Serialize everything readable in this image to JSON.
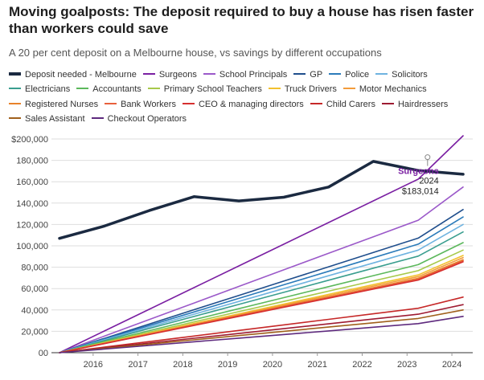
{
  "chart_data": {
    "type": "line",
    "title": "Moving goalposts: The deposit required to buy a house has risen faster than workers could save",
    "subtitle": "A 20 per cent deposit on a Melbourne house, vs savings by different occupations",
    "x_ticks": [
      "2016",
      "2017",
      "2018",
      "2019",
      "2020",
      "2021",
      "2022",
      "2023",
      "2024"
    ],
    "x": [
      2015.5,
      2016.5,
      2017.5,
      2018.5,
      2019.5,
      2020.5,
      2021.5,
      2022.5,
      2023.5,
      2024.5
    ],
    "ylim": [
      0,
      200000
    ],
    "y_ticks": [
      0,
      20000,
      40000,
      60000,
      80000,
      100000,
      120000,
      140000,
      160000,
      180000,
      200000
    ],
    "y_tick_labels": [
      "00",
      "20,000",
      "40,000",
      "60,000",
      "80,000",
      "100,000",
      "120,000",
      "140,000",
      "160,000",
      "180,000",
      "$200,000"
    ],
    "grid": true,
    "legend_position": "top",
    "series": [
      {
        "name": "Deposit needed - Melbourne",
        "color": "#1b2a41",
        "width": 3.5,
        "values": [
          107000,
          118500,
          133000,
          146000,
          142000,
          145500,
          155000,
          179000,
          170500,
          167000
        ]
      },
      {
        "name": "Surgeons",
        "color": "#7a1fa2",
        "width": 1.6,
        "values": [
          0,
          20300,
          40600,
          60900,
          81200,
          101500,
          121800,
          142100,
          162400,
          203000
        ]
      },
      {
        "name": "School Principals",
        "color": "#9b59c9",
        "width": 1.6,
        "values": [
          0,
          15500,
          31000,
          46500,
          62000,
          77500,
          93000,
          108500,
          124000,
          155000
        ]
      },
      {
        "name": "GP",
        "color": "#1f4e8c",
        "width": 1.6,
        "values": [
          0,
          13400,
          26800,
          40200,
          53600,
          67000,
          80400,
          93800,
          107200,
          134000
        ]
      },
      {
        "name": "Police",
        "color": "#2b7bba",
        "width": 1.6,
        "values": [
          0,
          12700,
          25400,
          38100,
          50800,
          63500,
          76200,
          88900,
          101600,
          127000
        ]
      },
      {
        "name": "Solicitors",
        "color": "#6fb3e0",
        "width": 1.6,
        "values": [
          0,
          12000,
          24000,
          36000,
          48000,
          60000,
          72000,
          84000,
          96000,
          120000
        ]
      },
      {
        "name": "Electricians",
        "color": "#3a9e8f",
        "width": 1.6,
        "values": [
          0,
          11300,
          22600,
          33900,
          45200,
          56500,
          67800,
          79100,
          90400,
          113000
        ]
      },
      {
        "name": "Accountants",
        "color": "#5cb85c",
        "width": 1.6,
        "values": [
          0,
          10300,
          20600,
          30900,
          41200,
          51500,
          61800,
          72100,
          82400,
          103000
        ]
      },
      {
        "name": "Primary School Teachers",
        "color": "#a7c94a",
        "width": 1.6,
        "values": [
          0,
          9600,
          19200,
          28800,
          38400,
          48000,
          57600,
          67200,
          76800,
          96000
        ]
      },
      {
        "name": "Truck Drivers",
        "color": "#f2c12e",
        "width": 1.6,
        "values": [
          0,
          9100,
          18200,
          27300,
          36400,
          45500,
          54600,
          63700,
          72800,
          91000
        ]
      },
      {
        "name": "Motor Mechanics",
        "color": "#f39c3b",
        "width": 1.6,
        "values": [
          0,
          8900,
          17800,
          26700,
          35600,
          44500,
          53400,
          62300,
          71200,
          89000
        ]
      },
      {
        "name": "Registered Nurses",
        "color": "#e8822a",
        "width": 1.6,
        "values": [
          0,
          8700,
          17400,
          26100,
          34800,
          43500,
          52200,
          60900,
          69600,
          87000
        ]
      },
      {
        "name": "Bank Workers",
        "color": "#e8603c",
        "width": 1.6,
        "values": [
          0,
          8600,
          17200,
          25800,
          34400,
          43000,
          51600,
          60200,
          68800,
          86000
        ]
      },
      {
        "name": "CEO & managing directors",
        "color": "#d62f2f",
        "width": 1.6,
        "values": [
          0,
          8500,
          17000,
          25500,
          34000,
          42500,
          51000,
          59500,
          68000,
          85000
        ]
      },
      {
        "name": "Child Carers",
        "color": "#c62828",
        "width": 1.6,
        "values": [
          0,
          5200,
          10400,
          15600,
          20800,
          26000,
          31200,
          36400,
          41600,
          52000
        ]
      },
      {
        "name": "Hairdressers",
        "color": "#9e1b32",
        "width": 1.6,
        "values": [
          0,
          4500,
          9000,
          13500,
          18000,
          22500,
          27000,
          31500,
          36000,
          45000
        ]
      },
      {
        "name": "Sales Assistant",
        "color": "#a0601c",
        "width": 1.6,
        "values": [
          0,
          4000,
          8000,
          12000,
          16000,
          20000,
          24000,
          28000,
          32000,
          40000
        ]
      },
      {
        "name": "Checkout Operators",
        "color": "#5e2a7e",
        "width": 1.6,
        "values": [
          0,
          3400,
          6800,
          10200,
          13600,
          17000,
          20400,
          23800,
          27200,
          34000
        ]
      }
    ],
    "annotation": {
      "name": "Surgeons",
      "year": "2024",
      "value": "$183,014",
      "x": 2023.6,
      "y": 183014
    }
  }
}
